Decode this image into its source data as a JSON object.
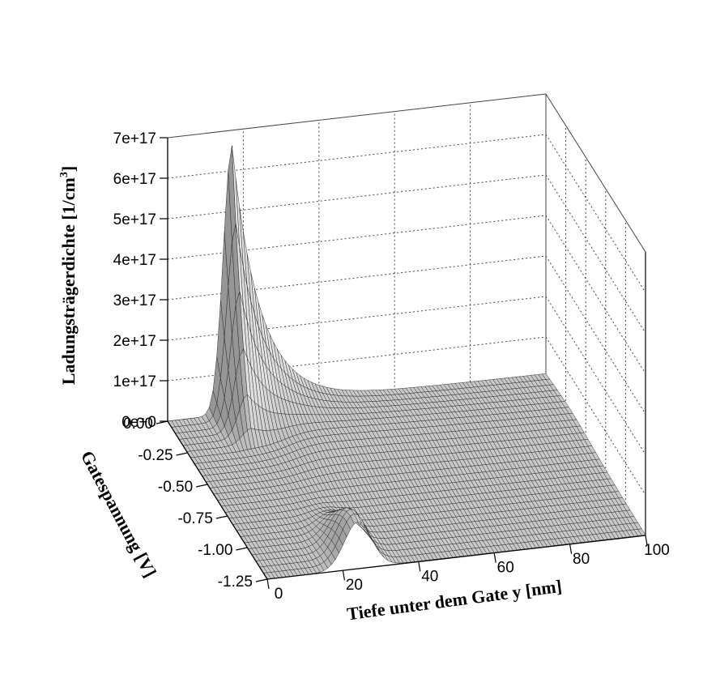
{
  "chart_data": {
    "type": "surface3d",
    "xlabel": "Tiefe unter dem Gate y [nm]",
    "ylabel": "Gatespannung [V]",
    "zlabel_main": "Ladungsträgerdichte [1/cm",
    "zlabel_sup": "3",
    "zlabel_close": "]",
    "x_ticks": [
      "0",
      "20",
      "40",
      "60",
      "80",
      "100"
    ],
    "x_tick_values": [
      0,
      20,
      40,
      60,
      80,
      100
    ],
    "y_ticks": [
      "0.00",
      "-0.25",
      "-0.50",
      "-0.75",
      "-1.00",
      "-1.25"
    ],
    "y_tick_values": [
      0.0,
      -0.25,
      -0.5,
      -0.75,
      -1.0,
      -1.25
    ],
    "z_ticks": [
      "0e+0",
      "1e+17",
      "2e+17",
      "3e+17",
      "4e+17",
      "5e+17",
      "6e+17",
      "7e+17"
    ],
    "z_tick_values": [
      0,
      1e+17,
      2e+17,
      3e+17,
      4e+17,
      5e+17,
      6e+17,
      7e+17
    ],
    "xlim": [
      0,
      100
    ],
    "ylim": [
      -1.25,
      0
    ],
    "zlim": [
      0,
      7e+17
    ],
    "grid": true,
    "surface_color": "#c8c8c8",
    "mesh_color": "#1a1a1a",
    "features": {
      "main_peak": {
        "x": 17,
        "y": 0.0,
        "z": 6.6e+17
      },
      "secondary_peak": {
        "x": 24,
        "y": -1.25,
        "z": 1.2e+17
      }
    }
  }
}
